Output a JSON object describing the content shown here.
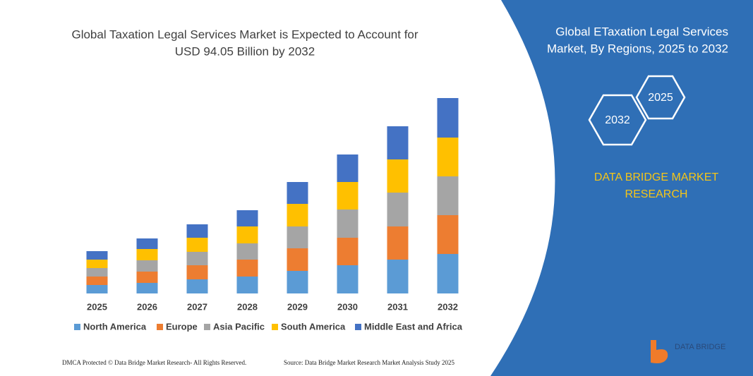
{
  "chart_data": {
    "type": "stacked_bar",
    "title": [
      "Global Taxation Legal Services Market is Expected to Account for",
      "USD 94.05 Billion by 2032"
    ],
    "categories": [
      "2025",
      "2026",
      "2027",
      "2028",
      "2029",
      "2030",
      "2031",
      "2032"
    ],
    "series": [
      {
        "name": "North America",
        "color": "#5b9bd5",
        "values": [
          12,
          15,
          20,
          24,
          32,
          40,
          48,
          56
        ]
      },
      {
        "name": "Europe",
        "color": "#ed7d31",
        "values": [
          12,
          16,
          20,
          24,
          32,
          39,
          47,
          55
        ]
      },
      {
        "name": "Asia Pacific",
        "color": "#a5a5a5",
        "values": [
          12,
          16,
          19,
          23,
          31,
          40,
          48,
          55
        ]
      },
      {
        "name": "South America",
        "color": "#ffc000",
        "values": [
          12,
          16,
          20,
          24,
          32,
          39,
          47,
          55
        ]
      },
      {
        "name": "Middle East and Africa",
        "color": "#4472c4",
        "values": [
          12,
          15,
          19,
          23,
          31,
          39,
          47,
          56
        ]
      }
    ],
    "ylim": [
      0,
      300
    ]
  },
  "panel": {
    "title": [
      "Global ETaxation Legal Services",
      "Market, By Regions, 2025 to 2032"
    ],
    "hexagons": [
      "2032",
      "2025"
    ],
    "brand": [
      "DATA BRIDGE MARKET",
      "RESEARCH"
    ],
    "logo_text": "DATA BRIDGE"
  },
  "footer": {
    "left": "DMCA Protected © Data Bridge Market Research- All Rights Reserved.",
    "right": "Source: Data Bridge Market Research Market Analysis Study 2025"
  }
}
